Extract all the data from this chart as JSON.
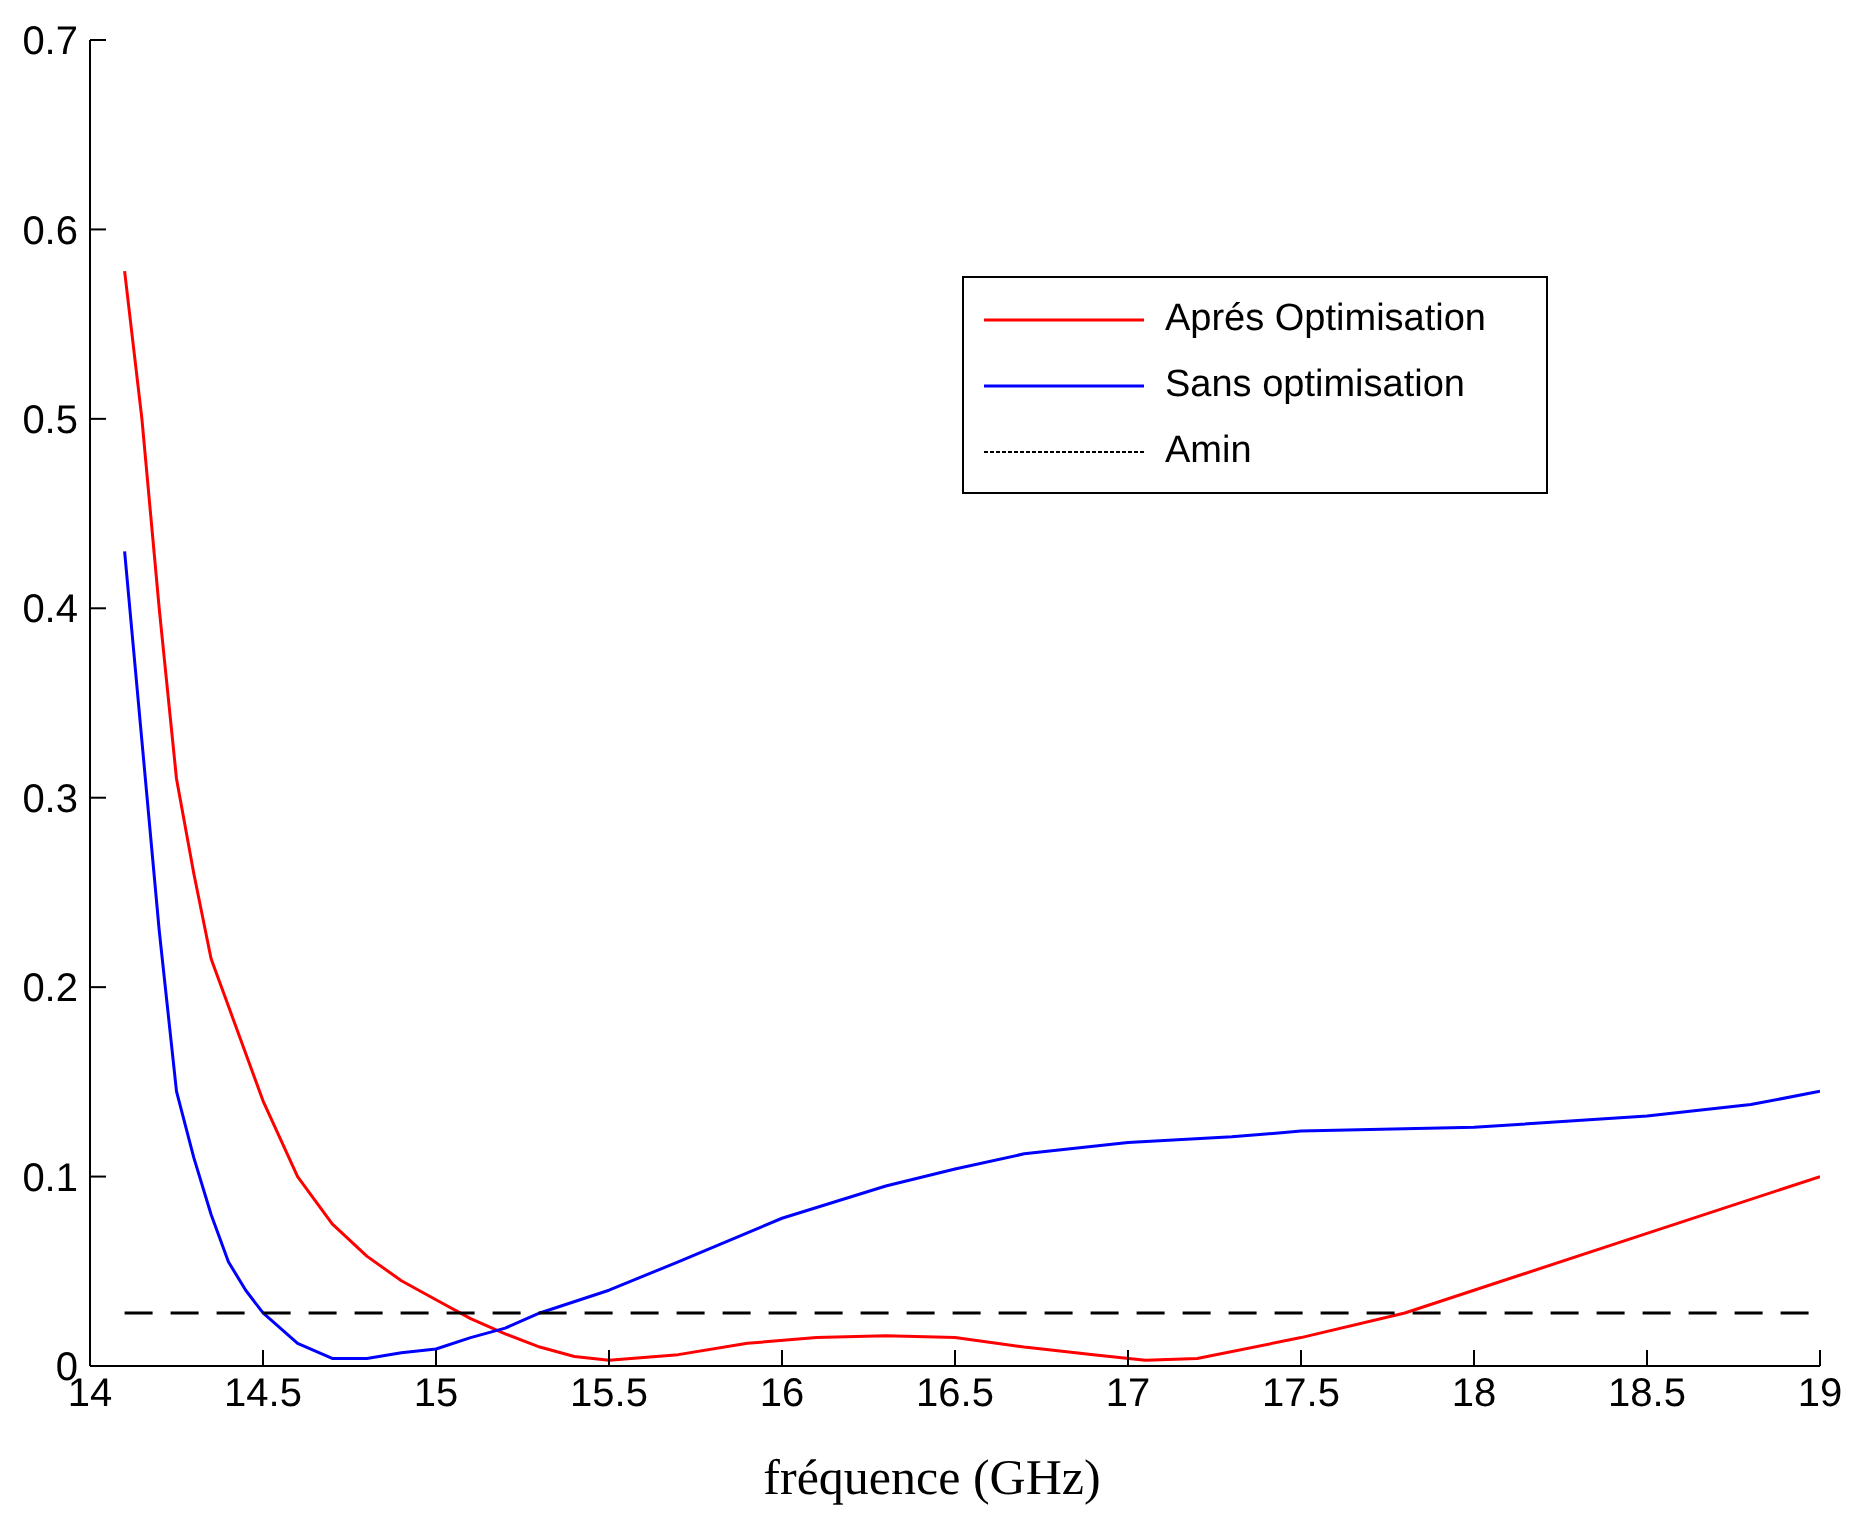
{
  "chart_data": {
    "type": "line",
    "xlabel": "fréquence (GHz)",
    "xlim": [
      14,
      19
    ],
    "ylim": [
      0,
      0.7
    ],
    "xticks": [
      14,
      14.5,
      15,
      15.5,
      16,
      16.5,
      17,
      17.5,
      18,
      18.5,
      19
    ],
    "yticks": [
      0,
      0.1,
      0.2,
      0.3,
      0.4,
      0.5,
      0.6,
      0.7
    ],
    "grid": false,
    "legend": "top right",
    "marker": "none",
    "series": [
      {
        "name": "Aprés Optimisation",
        "color": "#ff0000",
        "line_style": "solid",
        "x": [
          14.1,
          14.15,
          14.2,
          14.25,
          14.3,
          14.35,
          14.4,
          14.5,
          14.6,
          14.7,
          14.8,
          14.9,
          15,
          15.1,
          15.2,
          15.3,
          15.4,
          15.5,
          15.7,
          15.9,
          16.1,
          16.3,
          16.5,
          16.7,
          16.9,
          17.05,
          17.2,
          17.5,
          17.8,
          18,
          18.5,
          19
        ],
        "values": [
          0.578,
          0.5,
          0.4,
          0.31,
          0.26,
          0.215,
          0.19,
          0.14,
          0.1,
          0.075,
          0.058,
          0.045,
          0.035,
          0.025,
          0.017,
          0.01,
          0.005,
          0.003,
          0.006,
          0.012,
          0.015,
          0.016,
          0.015,
          0.01,
          0.006,
          0.003,
          0.004,
          0.015,
          0.028,
          0.04,
          0.07,
          0.1
        ]
      },
      {
        "name": "Sans optimisation",
        "color": "#0000ff",
        "line_style": "solid",
        "x": [
          14.1,
          14.15,
          14.2,
          14.25,
          14.3,
          14.35,
          14.4,
          14.45,
          14.5,
          14.6,
          14.7,
          14.8,
          14.9,
          15,
          15.1,
          15.2,
          15.3,
          15.5,
          15.7,
          16,
          16.3,
          16.5,
          16.7,
          17,
          17.3,
          17.5,
          18,
          18.5,
          18.8,
          19
        ],
        "values": [
          0.43,
          0.33,
          0.23,
          0.145,
          0.11,
          0.08,
          0.055,
          0.04,
          0.028,
          0.012,
          0.004,
          0.004,
          0.007,
          0.009,
          0.015,
          0.02,
          0.028,
          0.04,
          0.055,
          0.078,
          0.095,
          0.104,
          0.112,
          0.118,
          0.121,
          0.124,
          0.126,
          0.132,
          0.138,
          0.145
        ]
      },
      {
        "name": "Amin",
        "color": "#000000",
        "line_style": "dashed",
        "x": [
          14.1,
          19
        ],
        "values": [
          0.028,
          0.028
        ]
      }
    ]
  }
}
